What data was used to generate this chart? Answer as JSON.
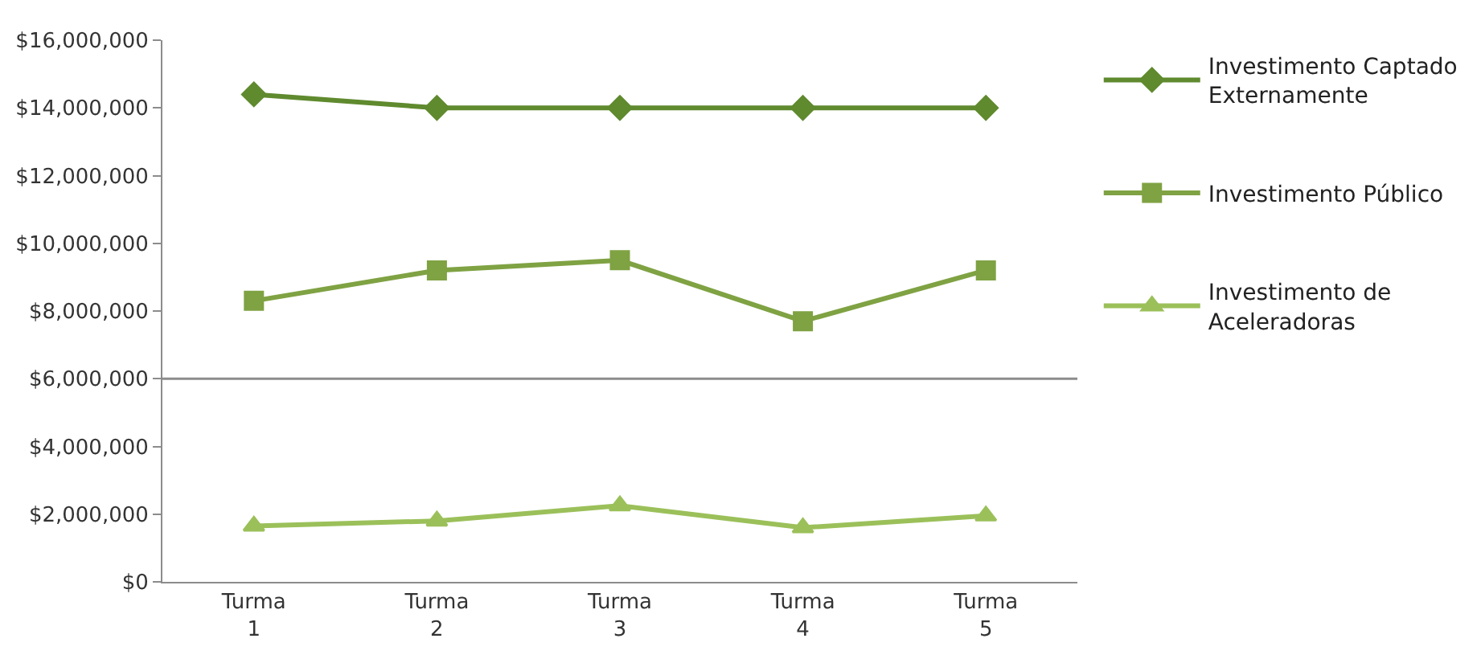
{
  "chart_data": {
    "type": "line",
    "categories": [
      "Turma 1",
      "Turma 2",
      "Turma 3",
      "Turma 4",
      "Turma 5"
    ],
    "series": [
      {
        "name": "Investimento Captado Externamente",
        "color": "#5f8a2e",
        "marker": "diamond",
        "values": [
          14400000,
          14000000,
          14000000,
          14000000,
          14000000
        ]
      },
      {
        "name": "Investimento Público",
        "color": "#7fa243",
        "marker": "square",
        "values": [
          8300000,
          9200000,
          9500000,
          7700000,
          9200000
        ]
      },
      {
        "name": "Investimento de Aceleradoras",
        "color": "#9bc05a",
        "marker": "triangle",
        "values": [
          1650000,
          1800000,
          2250000,
          1600000,
          1950000
        ]
      }
    ],
    "ylim": [
      0,
      16000000
    ],
    "yticks": [
      {
        "value": 0,
        "label": "$0"
      },
      {
        "value": 2000000,
        "label": "$2,000,000"
      },
      {
        "value": 4000000,
        "label": "$4,000,000"
      },
      {
        "value": 6000000,
        "label": "$6,000,000"
      },
      {
        "value": 8000000,
        "label": "$8,000,000"
      },
      {
        "value": 10000000,
        "label": "$10,000,000"
      },
      {
        "value": 12000000,
        "label": "$12,000,000"
      },
      {
        "value": 14000000,
        "label": "$14,000,000"
      },
      {
        "value": 16000000,
        "label": "$16,000,000"
      }
    ],
    "ref_lines": [
      {
        "axis": "y",
        "value": 6000000,
        "color": "#8c8c8c"
      }
    ],
    "grid": false,
    "legend": "right"
  }
}
